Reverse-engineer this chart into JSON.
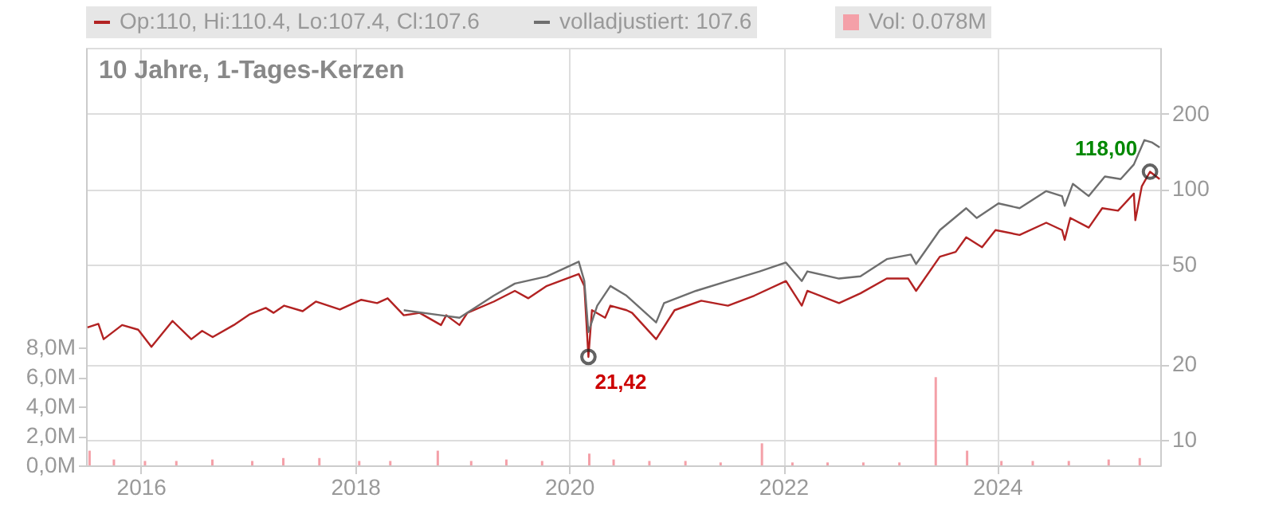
{
  "chart_data": {
    "type": "line",
    "title": "10 Jahre, 1-Tages-Kerzen",
    "log": "y",
    "grid": true,
    "legend": "top left",
    "marker": "none",
    "line_style": "solid",
    "xlim": [
      "2015-06-28",
      "2025-07-10"
    ],
    "xticks": [
      "2016",
      "2018",
      "2020",
      "2022",
      "2024"
    ],
    "ylim": [
      7.9,
      367
    ],
    "yticks": [
      10,
      20,
      50,
      100,
      200
    ],
    "y2lim": [
      0,
      28.4
    ],
    "y2ticks": [
      {
        "value": 0,
        "label": "0,0M"
      },
      {
        "value": 2,
        "label": "2,0M"
      },
      {
        "value": 4,
        "label": "4,0M"
      },
      {
        "value": 6,
        "label": "6,0M"
      },
      {
        "value": 8,
        "label": "8,0M"
      }
    ],
    "annotations": [
      {
        "text": "118,00",
        "x": "2025-06-05",
        "y": 117.5
      },
      {
        "text": "21,42",
        "x": "2020-03-07",
        "y": 21.42
      }
    ],
    "series": [
      {
        "name": "Op:110, Hi:110.4, Lo:107.4, Cl:107.6",
        "color": "#b22222",
        "x": [
          "2015-07-03",
          "2015-08-09",
          "2015-08-27",
          "2015-10-29",
          "2015-12-23",
          "2016-02-06",
          "2016-04-18",
          "2016-06-21",
          "2016-07-28",
          "2016-09-02",
          "2016-11-13",
          "2017-01-07",
          "2017-03-02",
          "2017-03-29",
          "2017-05-04",
          "2017-07-06",
          "2017-08-20",
          "2017-11-10",
          "2018-01-22",
          "2018-03-17",
          "2018-04-22",
          "2018-06-16",
          "2018-08-09",
          "2018-10-21",
          "2018-11-08",
          "2018-12-23",
          "2019-01-19",
          "2019-04-19",
          "2019-06-30",
          "2019-08-15",
          "2019-10-17",
          "2020-02-03",
          "2020-02-22",
          "2020-03-07",
          "2020-03-19",
          "2020-05-03",
          "2020-05-21",
          "2020-07-15",
          "2020-08-03",
          "2020-10-24",
          "2020-12-26",
          "2021-03-27",
          "2021-06-26",
          "2021-09-24",
          "2022-01-10",
          "2022-03-05",
          "2022-03-24",
          "2022-07-10",
          "2022-09-21",
          "2022-12-20",
          "2023-03-03",
          "2023-03-30",
          "2023-06-19",
          "2023-08-12",
          "2023-09-17",
          "2023-11-10",
          "2023-12-26",
          "2024-03-17",
          "2024-06-16",
          "2024-08-09",
          "2024-08-18",
          "2024-09-06",
          "2024-11-08",
          "2024-12-24",
          "2025-02-16",
          "2025-04-11",
          "2025-04-16",
          "2025-05-08",
          "2025-06-05",
          "2025-07-08"
        ],
        "values": [
          28.1,
          29.0,
          25.2,
          28.7,
          27.5,
          23.5,
          29.8,
          25.2,
          27.2,
          25.7,
          28.7,
          31.7,
          33.6,
          32.1,
          34.3,
          32.6,
          35.6,
          33.1,
          36.2,
          35.1,
          36.7,
          31.4,
          32.1,
          28.7,
          31.4,
          28.7,
          32.1,
          35.6,
          39.3,
          36.7,
          41.1,
          45.9,
          41.1,
          21.4,
          32.9,
          30.7,
          34.3,
          32.9,
          32.1,
          25.2,
          32.9,
          35.9,
          34.3,
          37.6,
          43.0,
          34.3,
          39.3,
          35.1,
          38.4,
          44.0,
          44.0,
          39.3,
          53.8,
          56.2,
          64.3,
          58.7,
          68.7,
          65.7,
          73.5,
          68.7,
          62.8,
          76.8,
          70.3,
          84.0,
          82.1,
          96.1,
          75.2,
          102.7,
          117.5,
          109.8
        ]
      },
      {
        "name": "volladjustiert: 107.6",
        "color": "#6e6e6e",
        "x": [
          "2018-06-16",
          "2018-10-21",
          "2018-12-23",
          "2019-04-19",
          "2019-06-30",
          "2019-10-17",
          "2020-02-03",
          "2020-02-22",
          "2020-03-07",
          "2020-04-06",
          "2020-05-21",
          "2020-07-15",
          "2020-08-03",
          "2020-10-24",
          "2020-11-20",
          "2021-03-09",
          "2021-06-26",
          "2021-10-12",
          "2022-01-10",
          "2022-03-05",
          "2022-03-24",
          "2022-07-10",
          "2022-09-21",
          "2022-12-20",
          "2023-03-12",
          "2023-03-30",
          "2023-06-19",
          "2023-09-17",
          "2023-10-23",
          "2024-01-05",
          "2024-03-17",
          "2024-06-16",
          "2024-08-09",
          "2024-08-18",
          "2024-09-15",
          "2024-11-08",
          "2025-01-02",
          "2025-02-25",
          "2025-04-11",
          "2025-05-17",
          "2025-06-13",
          "2025-07-08"
        ],
        "values": [
          32.9,
          31.4,
          30.7,
          37.6,
          42.0,
          44.9,
          51.4,
          43.0,
          26.9,
          34.3,
          41.1,
          37.6,
          35.9,
          29.4,
          35.1,
          39.3,
          43.0,
          47.0,
          51.0,
          43.0,
          47.0,
          44.0,
          44.9,
          52.6,
          54.9,
          50.3,
          68.7,
          84.0,
          76.8,
          87.8,
          84.0,
          98.3,
          93.9,
          85.9,
          105.1,
          93.9,
          112.4,
          109.8,
          125.6,
          157.1,
          153.6,
          146.9
        ]
      },
      {
        "name": "Vol: 0.078M",
        "type": "bar",
        "axis": "y2",
        "color": "#f4a0a8",
        "x": [
          "2015-07-10",
          "2015-10-01",
          "2016-01-15",
          "2016-05-01",
          "2016-09-01",
          "2017-01-15",
          "2017-05-01",
          "2017-09-01",
          "2018-01-15",
          "2018-05-01",
          "2018-10-10",
          "2019-02-01",
          "2019-06-01",
          "2019-10-01",
          "2020-03-10",
          "2020-06-01",
          "2020-10-01",
          "2021-02-01",
          "2021-06-01",
          "2021-10-20",
          "2022-02-01",
          "2022-06-01",
          "2022-10-01",
          "2023-02-01",
          "2023-06-05",
          "2023-09-20",
          "2024-01-15",
          "2024-05-01",
          "2024-09-01",
          "2025-01-15",
          "2025-05-01"
        ],
        "values": [
          1.0,
          0.4,
          0.3,
          0.3,
          0.4,
          0.3,
          0.5,
          0.5,
          0.3,
          0.3,
          1.0,
          0.3,
          0.4,
          0.3,
          0.8,
          0.4,
          0.3,
          0.3,
          0.2,
          1.5,
          0.2,
          0.2,
          0.2,
          0.2,
          6.0,
          1.0,
          0.3,
          0.3,
          0.3,
          0.4,
          0.5
        ]
      }
    ]
  }
}
